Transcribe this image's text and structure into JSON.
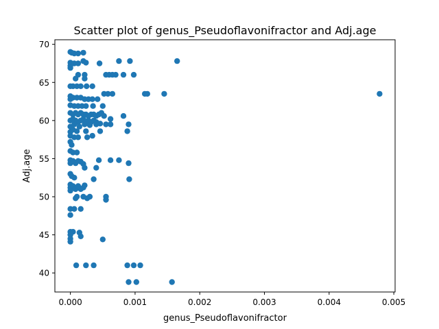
{
  "chart_data": {
    "type": "scatter",
    "title": "Scatter plot of genus_Pseudoflavonifractor and Adj.age",
    "xlabel": "genus_Pseudoflavonifractor",
    "ylabel": "Adj.age",
    "xlim": [
      -0.00024,
      0.00502
    ],
    "ylim": [
      37.5,
      70.6
    ],
    "xticks": [
      {
        "value": 0.0,
        "label": "0.000"
      },
      {
        "value": 0.001,
        "label": "0.001"
      },
      {
        "value": 0.002,
        "label": "0.002"
      },
      {
        "value": 0.003,
        "label": "0.003"
      },
      {
        "value": 0.004,
        "label": "0.004"
      },
      {
        "value": 0.005,
        "label": "0.005"
      }
    ],
    "yticks": [
      {
        "value": 40,
        "label": "40"
      },
      {
        "value": 45,
        "label": "45"
      },
      {
        "value": 50,
        "label": "50"
      },
      {
        "value": 55,
        "label": "55"
      },
      {
        "value": 60,
        "label": "60"
      },
      {
        "value": 65,
        "label": "65"
      },
      {
        "value": 70,
        "label": "70"
      }
    ],
    "grid": false,
    "marker_color": "#1f77b4",
    "series": [
      {
        "points": [
          [
            0.0,
            69.0
          ],
          [
            2e-05,
            68.9
          ],
          [
            6e-05,
            68.8
          ],
          [
            0.00012,
            68.8
          ],
          [
            0.0002,
            68.9
          ],
          [
            0.0,
            67.6
          ],
          [
            0.0,
            67.2
          ],
          [
            0.0,
            66.9
          ],
          [
            6e-05,
            67.5
          ],
          [
            0.00012,
            67.5
          ],
          [
            0.0002,
            67.8
          ],
          [
            0.00024,
            67.6
          ],
          [
            0.00045,
            67.5
          ],
          [
            0.00075,
            67.8
          ],
          [
            0.00092,
            67.8
          ],
          [
            0.00165,
            67.8
          ],
          [
            8e-05,
            65.5
          ],
          [
            0.00012,
            66.0
          ],
          [
            0.00022,
            66.0
          ],
          [
            0.00022,
            65.5
          ],
          [
            0.00055,
            66.0
          ],
          [
            0.0006,
            66.0
          ],
          [
            0.00065,
            66.0
          ],
          [
            0.0007,
            66.0
          ],
          [
            0.00082,
            66.0
          ],
          [
            0.00098,
            66.0
          ],
          [
            0.0,
            64.5
          ],
          [
            4e-05,
            64.5
          ],
          [
            0.0001,
            64.5
          ],
          [
            0.00016,
            64.5
          ],
          [
            0.00025,
            64.5
          ],
          [
            0.00034,
            64.5
          ],
          [
            0.0,
            63.2
          ],
          [
            0.0,
            62.8
          ],
          [
            4e-05,
            63.0
          ],
          [
            0.0001,
            63.0
          ],
          [
            0.00016,
            63.0
          ],
          [
            0.00022,
            62.8
          ],
          [
            0.00028,
            62.8
          ],
          [
            0.00034,
            62.8
          ],
          [
            0.00042,
            62.8
          ],
          [
            0.00052,
            63.5
          ],
          [
            0.00058,
            63.5
          ],
          [
            0.00065,
            63.5
          ],
          [
            0.00115,
            63.5
          ],
          [
            0.00119,
            63.5
          ],
          [
            0.00145,
            63.5
          ],
          [
            0.00478,
            63.5
          ],
          [
            0.0,
            62.0
          ],
          [
            6e-05,
            61.9
          ],
          [
            0.00012,
            61.9
          ],
          [
            0.00018,
            61.9
          ],
          [
            0.00024,
            61.9
          ],
          [
            0.00035,
            61.9
          ],
          [
            0.0005,
            61.9
          ],
          [
            0.0,
            61.0
          ],
          [
            4e-05,
            60.8
          ],
          [
            8e-05,
            61.0
          ],
          [
            0.00012,
            60.8
          ],
          [
            0.00016,
            61.0
          ],
          [
            0.0002,
            60.8
          ],
          [
            0.00024,
            60.8
          ],
          [
            0.00028,
            60.6
          ],
          [
            0.00032,
            60.8
          ],
          [
            0.00036,
            60.8
          ],
          [
            0.0004,
            60.6
          ],
          [
            0.00044,
            60.8
          ],
          [
            0.00048,
            61.0
          ],
          [
            0.00052,
            60.6
          ],
          [
            0.00082,
            60.6
          ],
          [
            0.0,
            60.0
          ],
          [
            4e-05,
            60.2
          ],
          [
            8e-05,
            60.0
          ],
          [
            0.00012,
            59.8
          ],
          [
            0.00016,
            60.0
          ],
          [
            0.0002,
            60.2
          ],
          [
            0.00024,
            59.8
          ],
          [
            0.00028,
            60.0
          ],
          [
            0.00032,
            59.8
          ],
          [
            0.00036,
            60.0
          ],
          [
            0.0004,
            59.8
          ],
          [
            0.00046,
            59.6
          ],
          [
            0.00062,
            60.2
          ],
          [
            0.0,
            59.2
          ],
          [
            6e-05,
            59.5
          ],
          [
            0.00014,
            59.2
          ],
          [
            0.00022,
            59.5
          ],
          [
            0.0003,
            59.4
          ],
          [
            0.0004,
            59.5
          ],
          [
            0.00055,
            59.5
          ],
          [
            0.00062,
            59.5
          ],
          [
            0.0009,
            59.5
          ],
          [
            0.0,
            58.5
          ],
          [
            4e-05,
            58.8
          ],
          [
            0.0001,
            58.6
          ],
          [
            0.00024,
            58.6
          ],
          [
            0.00046,
            58.6
          ],
          [
            0.00088,
            58.6
          ],
          [
            0.0,
            58.0
          ],
          [
            6e-05,
            57.8
          ],
          [
            0.00012,
            57.8
          ],
          [
            0.00026,
            57.8
          ],
          [
            0.00034,
            58.0
          ],
          [
            0.0,
            57.2
          ],
          [
            2e-05,
            56.8
          ],
          [
            0.0,
            56.0
          ],
          [
            4e-05,
            55.8
          ],
          [
            0.0001,
            55.8
          ],
          [
            0.0,
            54.8
          ],
          [
            0.0,
            54.4
          ],
          [
            4e-05,
            54.7
          ],
          [
            8e-05,
            54.4
          ],
          [
            0.00012,
            54.7
          ],
          [
            0.00016,
            54.6
          ],
          [
            0.0002,
            54.3
          ],
          [
            0.00022,
            53.8
          ],
          [
            0.0004,
            53.8
          ],
          [
            0.00044,
            54.8
          ],
          [
            0.00062,
            54.8
          ],
          [
            0.00075,
            54.8
          ],
          [
            0.0009,
            54.4
          ],
          [
            0.0,
            53.0
          ],
          [
            2e-05,
            52.7
          ],
          [
            6e-05,
            52.5
          ],
          [
            0.00036,
            52.3
          ],
          [
            0.00091,
            52.3
          ],
          [
            0.0,
            51.6
          ],
          [
            0.0,
            51.2
          ],
          [
            0.0,
            50.8
          ],
          [
            4e-05,
            51.4
          ],
          [
            8e-05,
            51.0
          ],
          [
            0.00012,
            51.4
          ],
          [
            0.00016,
            51.0
          ],
          [
            0.0002,
            51.2
          ],
          [
            0.00022,
            51.5
          ],
          [
            0.0001,
            50.0
          ],
          [
            8e-05,
            49.8
          ],
          [
            0.0002,
            50.0
          ],
          [
            0.00026,
            49.8
          ],
          [
            0.0003,
            50.0
          ],
          [
            0.00055,
            50.0
          ],
          [
            0.00055,
            49.6
          ],
          [
            0.0,
            48.4
          ],
          [
            6e-05,
            48.4
          ],
          [
            0.00016,
            48.4
          ],
          [
            0.0,
            47.6
          ],
          [
            0.0,
            45.4
          ],
          [
            4e-05,
            45.4
          ],
          [
            0.00014,
            45.3
          ],
          [
            0.0,
            45.0
          ],
          [
            0.0,
            44.5
          ],
          [
            0.0,
            44.1
          ],
          [
            0.00016,
            44.8
          ],
          [
            0.0005,
            44.4
          ],
          [
            9e-05,
            41.0
          ],
          [
            0.00024,
            41.0
          ],
          [
            0.00036,
            41.0
          ],
          [
            0.00088,
            41.0
          ],
          [
            0.00098,
            41.0
          ],
          [
            0.00108,
            41.0
          ],
          [
            0.0009,
            38.8
          ],
          [
            0.00102,
            38.8
          ],
          [
            0.00157,
            38.8
          ]
        ]
      }
    ]
  }
}
